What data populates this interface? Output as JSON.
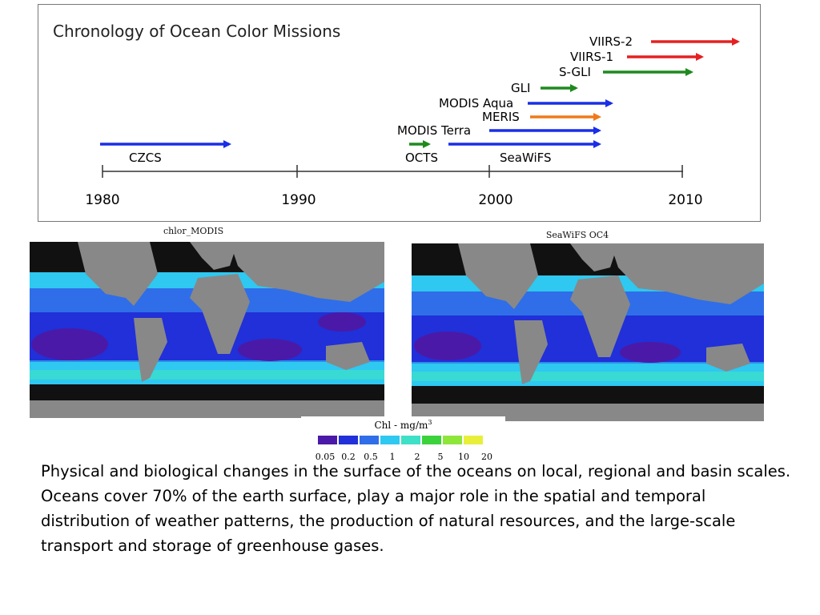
{
  "timeline": {
    "title": "Chronology of Ocean Color Missions",
    "axis_years": [
      "1980",
      "1990",
      "2000",
      "2010"
    ],
    "missions": [
      {
        "name": "CZCS",
        "color": "#1a2ee6"
      },
      {
        "name": "OCTS",
        "color": "#1f8a1f"
      },
      {
        "name": "SeaWiFS",
        "color": "#1a2ee6"
      },
      {
        "name": "MODIS Terra",
        "color": "#1a2ee6"
      },
      {
        "name": "MERIS",
        "color": "#f07a1a"
      },
      {
        "name": "MODIS Aqua",
        "color": "#1a2ee6"
      },
      {
        "name": "GLI",
        "color": "#1f8a1f"
      },
      {
        "name": "S-GLI",
        "color": "#1f8a1f"
      },
      {
        "name": "VIIRS-1",
        "color": "#e62020"
      },
      {
        "name": "VIIRS-2",
        "color": "#e62020"
      }
    ]
  },
  "maps": {
    "left_label": "chlor_MODIS",
    "right_label": "SeaWiFS OC4"
  },
  "legend": {
    "title": "Chl  - mg/m",
    "title_sup": "3",
    "ticks": [
      "0.05",
      "0.2",
      "0.5",
      "1",
      "2",
      "5",
      "10",
      "20"
    ],
    "swatches": [
      "#4b19a8",
      "#2130d8",
      "#2f6ee8",
      "#2ec8f0",
      "#3fe0c8",
      "#3cd23c",
      "#8ee63a",
      "#e8ef3a"
    ]
  },
  "caption": {
    "para1": "Physical and biological changes in the surface of the oceans on local, regional and basin scales.",
    "para2": " Oceans cover 70% of the earth surface, play a major role in the spatial and temporal distribution of weather patterns, the production of natural resources, and the large-scale transport and storage of greenhouse gases."
  }
}
